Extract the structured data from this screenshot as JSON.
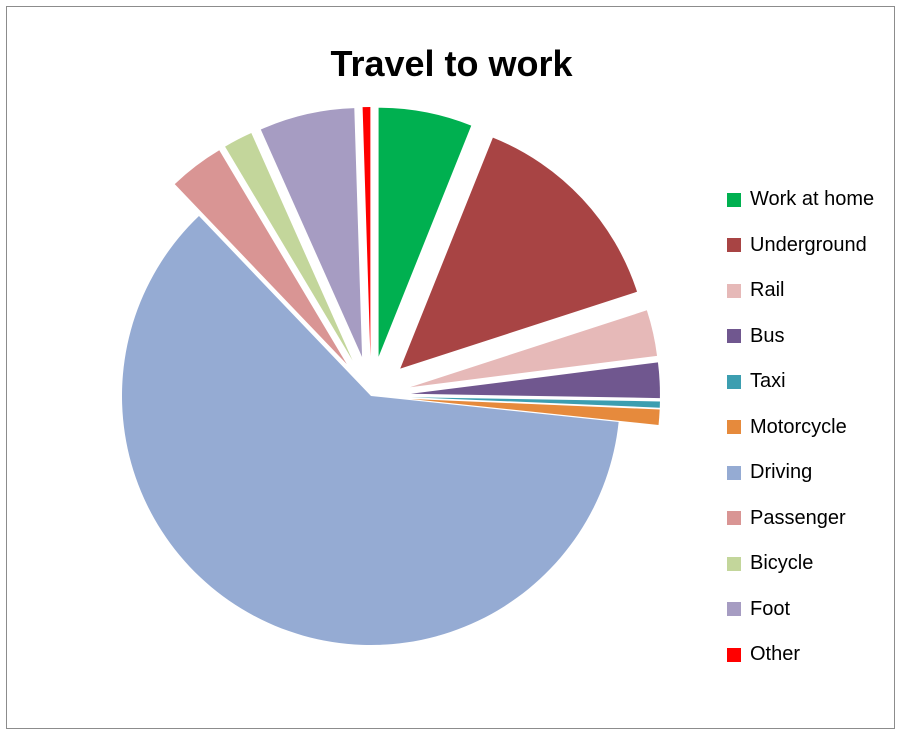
{
  "chart_data": {
    "type": "pie",
    "title": "Travel to work",
    "legend_position": "right",
    "exploded": true,
    "slices": [
      {
        "label": "Work at home",
        "value": 6.1,
        "color": "#00b050"
      },
      {
        "label": "Underground",
        "value": 14.0,
        "color": "#a84444"
      },
      {
        "label": "Rail",
        "value": 3.0,
        "color": "#e6b9b8"
      },
      {
        "label": "Bus",
        "value": 2.3,
        "color": "#70578f"
      },
      {
        "label": "Taxi",
        "value": 0.4,
        "color": "#3c9eb0"
      },
      {
        "label": "Motorcycle",
        "value": 1.0,
        "color": "#e68a3c"
      },
      {
        "label": "Driving",
        "value": 61.5,
        "color": "#95abd3"
      },
      {
        "label": "Passenger",
        "value": 3.6,
        "color": "#d99594"
      },
      {
        "label": "Bicycle",
        "value": 1.9,
        "color": "#c3d69b"
      },
      {
        "label": "Foot",
        "value": 6.2,
        "color": "#a69cc2"
      },
      {
        "label": "Other",
        "value": 0.5,
        "color": "#ff0000"
      }
    ]
  }
}
